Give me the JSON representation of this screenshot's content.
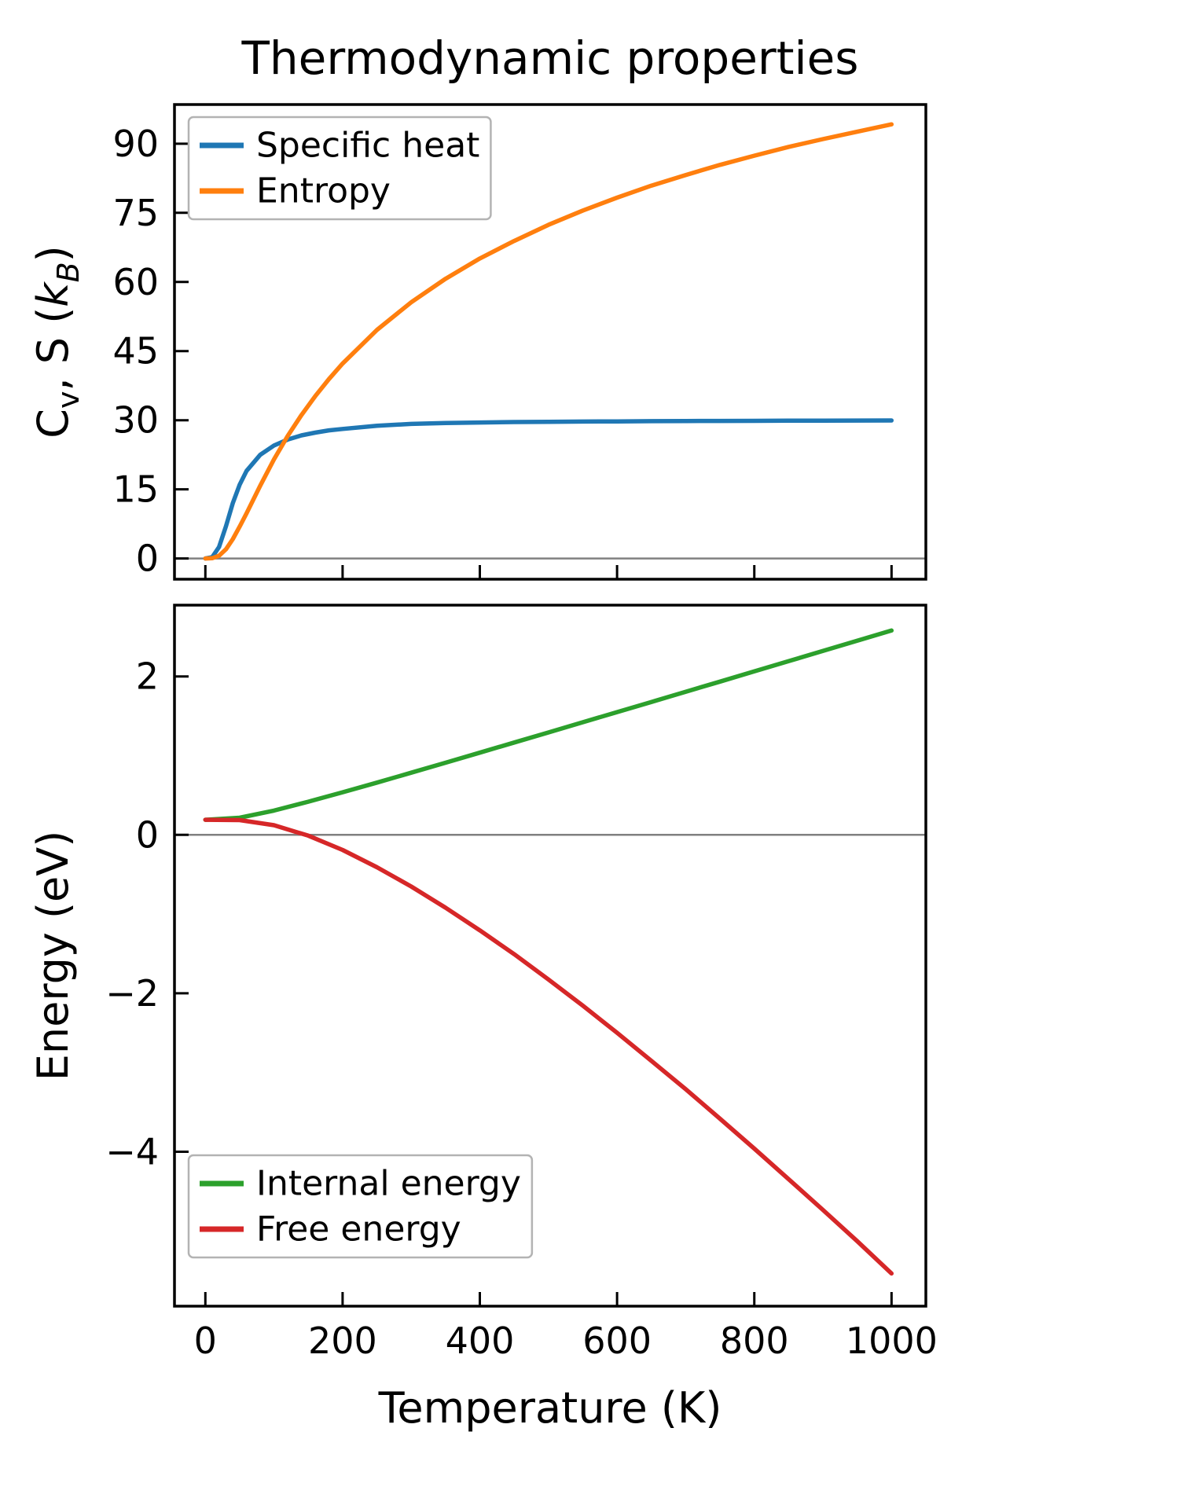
{
  "title": "Thermodynamic properties",
  "xlabel": "Temperature (K)",
  "colors": {
    "background": "#ffffff",
    "spine": "#000000",
    "zero_line": "#808080",
    "legend_border": "#b3b3b3",
    "blue": "#1f77b4",
    "orange": "#ff7f0e",
    "green": "#2ca02c",
    "red": "#d62728"
  },
  "chart_data": [
    {
      "type": "line",
      "ylabel_plain": "Cv, S (kB)",
      "ylabel_parts": [
        {
          "text": "C"
        },
        {
          "text": "v",
          "sub": true
        },
        {
          "text": ", S ("
        },
        {
          "text": "k",
          "italic": true
        },
        {
          "text": "B",
          "sub": true,
          "italic": true
        },
        {
          "text": ")"
        }
      ],
      "xlim": [
        -45,
        1050
      ],
      "ylim": [
        -4.5,
        98.5
      ],
      "xticks": [
        0,
        200,
        400,
        600,
        800,
        1000
      ],
      "yticks": [
        0,
        15,
        30,
        45,
        60,
        75,
        90
      ],
      "show_xticklabels": false,
      "zero_line": true,
      "legend_pos": "upper-left",
      "x": [
        0,
        10,
        20,
        30,
        40,
        50,
        60,
        80,
        100,
        120,
        140,
        160,
        180,
        200,
        250,
        300,
        350,
        400,
        450,
        500,
        550,
        600,
        650,
        700,
        750,
        800,
        850,
        900,
        950,
        1000
      ],
      "series": [
        {
          "name": "Specific heat",
          "color": "#1f77b4",
          "values": [
            0,
            0.3,
            2.5,
            7,
            12,
            16,
            19,
            22.5,
            24.5,
            25.8,
            26.7,
            27.3,
            27.8,
            28.1,
            28.8,
            29.2,
            29.4,
            29.5,
            29.6,
            29.65,
            29.7,
            29.75,
            29.8,
            29.82,
            29.85,
            29.87,
            29.9,
            29.92,
            29.93,
            29.95
          ]
        },
        {
          "name": "Entropy",
          "color": "#ff7f0e",
          "values": [
            0,
            0.05,
            0.6,
            2.0,
            4.2,
            6.9,
            9.8,
            15.8,
            21.5,
            26.6,
            31.1,
            35.2,
            38.9,
            42.3,
            49.6,
            55.6,
            60.7,
            65.1,
            68.9,
            72.4,
            75.5,
            78.3,
            80.9,
            83.2,
            85.4,
            87.4,
            89.3,
            91.0,
            92.6,
            94.2
          ]
        }
      ]
    },
    {
      "type": "line",
      "ylabel_plain": "Energy (eV)",
      "ylabel_parts": [
        {
          "text": "Energy (eV)"
        }
      ],
      "xlim": [
        -45,
        1050
      ],
      "ylim": [
        -5.95,
        2.9
      ],
      "xticks": [
        0,
        200,
        400,
        600,
        800,
        1000
      ],
      "yticks": [
        -4,
        -2,
        0,
        2
      ],
      "show_xticklabels": true,
      "zero_line": true,
      "legend_pos": "lower-left",
      "x": [
        0,
        50,
        100,
        150,
        200,
        250,
        300,
        350,
        400,
        450,
        500,
        550,
        600,
        650,
        700,
        750,
        800,
        850,
        900,
        950,
        1000
      ],
      "series": [
        {
          "name": "Internal energy",
          "color": "#2ca02c",
          "values": [
            0.19,
            0.216,
            0.307,
            0.419,
            0.538,
            0.66,
            0.785,
            0.911,
            1.038,
            1.166,
            1.293,
            1.422,
            1.55,
            1.678,
            1.807,
            1.935,
            2.064,
            2.193,
            2.322,
            2.451,
            2.58
          ]
        },
        {
          "name": "Free energy",
          "color": "#d62728",
          "values": [
            0.19,
            0.186,
            0.122,
            -0.01,
            -0.191,
            -0.409,
            -0.652,
            -0.92,
            -1.206,
            -1.506,
            -1.826,
            -2.156,
            -2.498,
            -2.853,
            -3.211,
            -3.584,
            -3.961,
            -4.347,
            -4.735,
            -5.129,
            -5.537
          ]
        }
      ]
    }
  ]
}
